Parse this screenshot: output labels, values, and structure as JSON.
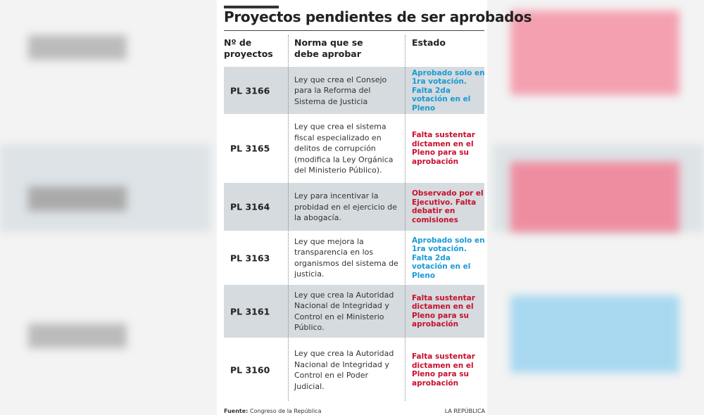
{
  "header": {
    "title": "Proyectos pendientes de ser aprobados"
  },
  "table": {
    "columns": [
      "Nº de proyectos",
      "Norma que se debe aprobar",
      "Estado"
    ],
    "rows": [
      {
        "code": "PL 3166",
        "norma": "Ley que crea el Consejo para la Reforma del Sistema de Justicia",
        "estado": "Aprobado solo en 1ra votación. Falta 2da votación en el Pleno",
        "color": "#1a9ad6"
      },
      {
        "code": "PL 3165",
        "norma": "Ley que crea el sistema fiscal especializado en delitos de corrupción (modifica la Ley Orgánica del Ministerio Público).",
        "estado": "Falta sustentar dictamen en el Pleno para su aprobación",
        "color": "#c8102e"
      },
      {
        "code": "PL 3164",
        "norma": "Ley para incentivar la probidad en el ejercicio de la abogacía.",
        "estado": "Observado por el Ejecutivo. Falta debatir en comisiones",
        "color": "#c8102e"
      },
      {
        "code": "PL 3163",
        "norma": "Ley que mejora la transparencia en los organismos del sistema de justicia.",
        "estado": "Aprobado solo en 1ra votación. Falta 2da votación en el Pleno",
        "color": "#1a9ad6"
      },
      {
        "code": "PL 3161",
        "norma": "Ley que crea la Autoridad Nacional de Integridad y Control en el Ministerio Público.",
        "estado": "Falta sustentar dictamen en el Pleno para su aprobación",
        "color": "#c8102e"
      },
      {
        "code": "PL 3160",
        "norma": "Ley que crea la Autoridad Nacional de Integridad y Control en el Poder Judicial.",
        "estado": "Falta sustentar dictamen en el Pleno para su aprobación",
        "color": "#c8102e"
      }
    ]
  },
  "footer": {
    "source_label": "Fuente:",
    "source": "Congreso de la República",
    "brand": "LA REPÚBLICA"
  }
}
